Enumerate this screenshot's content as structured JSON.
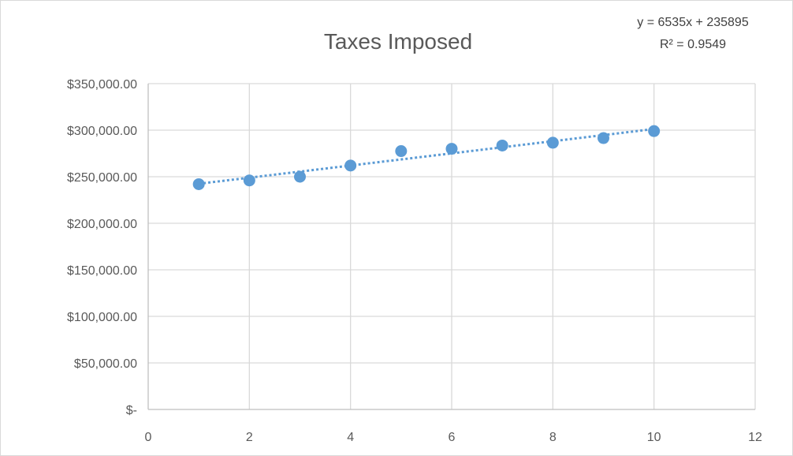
{
  "chart_data": {
    "type": "scatter",
    "title": "Taxes Imposed",
    "x": [
      1,
      2,
      3,
      4,
      5,
      6,
      7,
      8,
      9,
      10
    ],
    "y": [
      242000,
      246000,
      250000,
      262000,
      277500,
      280000,
      283500,
      286500,
      291500,
      299000
    ],
    "xlim": [
      0,
      12
    ],
    "ylim": [
      0,
      350000
    ],
    "x_ticks": [
      0,
      2,
      4,
      6,
      8,
      10,
      12
    ],
    "x_tick_labels": [
      "0",
      "2",
      "4",
      "6",
      "8",
      "10",
      "12"
    ],
    "y_ticks": [
      0,
      50000,
      100000,
      150000,
      200000,
      250000,
      300000,
      350000
    ],
    "y_tick_labels": [
      "$-",
      "$50,000.00",
      "$100,000.00",
      "$150,000.00",
      "$200,000.00",
      "$250,000.00",
      "$300,000.00",
      "$350,000.00"
    ],
    "grid": true,
    "marker_color": "#5b9bd5",
    "trendline": {
      "type": "linear",
      "slope": 6535,
      "intercept": 235895,
      "x_range": [
        1,
        10
      ],
      "equation_label": "y = 6535x + 235895",
      "r2_label": "R² = 0.9549",
      "color": "#5b9bd5",
      "style": "dotted"
    }
  }
}
